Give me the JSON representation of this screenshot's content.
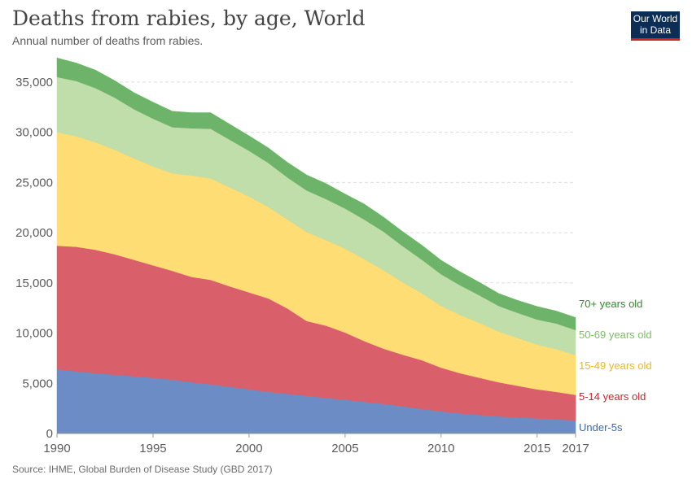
{
  "header": {
    "title": "Deaths from rabies, by age, World",
    "subtitle": "Annual number of deaths from rabies.",
    "logo_line1": "Our World",
    "logo_line2": "in Data"
  },
  "footer": {
    "source": "Source: IHME, Global Burden of Disease Study (GBD 2017)"
  },
  "colors": {
    "Under-5s": "#6b8cc4",
    "5-14 years old": "#d9606a",
    "15-49 years old": "#fedd74",
    "50-69 years old": "#bfdeaa",
    "70+ years old": "#6db46a",
    "label_Under-5s": "#3b68b0",
    "label_5-14 years old": "#c9272f",
    "label_15-49 years old": "#e8b923",
    "label_50-69 years old": "#7dbe66",
    "label_70+ years old": "#2f8c2e",
    "grid": "#dddddd",
    "logo_bg": "#0c2d55",
    "logo_bar": "#ce261e"
  },
  "chart_data": {
    "type": "area",
    "stacked": true,
    "title": "Deaths from rabies, by age, World",
    "xlabel": "",
    "ylabel": "",
    "xlim": [
      1990,
      2017
    ],
    "ylim": [
      0,
      37500
    ],
    "grid": "horizontal",
    "legend": "right (inline labels at series end)",
    "x_ticks": [
      1990,
      1995,
      2000,
      2005,
      2010,
      2015,
      2017
    ],
    "y_ticks": [
      0,
      5000,
      10000,
      15000,
      20000,
      25000,
      30000,
      35000
    ],
    "y_tick_labels": [
      "0",
      "5,000",
      "10,000",
      "15,000",
      "20,000",
      "25,000",
      "30,000",
      "35,000"
    ],
    "x": [
      1990,
      1991,
      1992,
      1993,
      1994,
      1995,
      1996,
      1997,
      1998,
      1999,
      2000,
      2001,
      2002,
      2003,
      2004,
      2005,
      2006,
      2007,
      2008,
      2009,
      2010,
      2011,
      2012,
      2013,
      2014,
      2015,
      2016,
      2017
    ],
    "series": [
      {
        "name": "Under-5s",
        "values": [
          6400,
          6200,
          6000,
          5850,
          5700,
          5550,
          5350,
          5100,
          4900,
          4650,
          4400,
          4150,
          3950,
          3750,
          3550,
          3350,
          3150,
          2950,
          2700,
          2450,
          2200,
          2000,
          1850,
          1700,
          1600,
          1500,
          1400,
          1300
        ]
      },
      {
        "name": "5-14 years old",
        "values": [
          12300,
          12400,
          12300,
          12000,
          11600,
          11200,
          10850,
          10500,
          10400,
          10000,
          9650,
          9300,
          8500,
          7450,
          7200,
          6700,
          6050,
          5500,
          5150,
          4850,
          4350,
          4000,
          3700,
          3400,
          3150,
          2900,
          2750,
          2550
        ]
      },
      {
        "name": "15-49 years old",
        "values": [
          11300,
          11000,
          10700,
          10400,
          10100,
          9850,
          9700,
          10100,
          10100,
          9850,
          9550,
          9100,
          8850,
          8850,
          8500,
          8350,
          8150,
          7800,
          7200,
          6650,
          6150,
          5800,
          5450,
          5050,
          4750,
          4450,
          4250,
          3950
        ]
      },
      {
        "name": "50-69 years old",
        "values": [
          5500,
          5500,
          5400,
          5200,
          4900,
          4750,
          4600,
          4700,
          4950,
          4750,
          4550,
          4400,
          4200,
          4150,
          4100,
          4000,
          3950,
          3850,
          3600,
          3350,
          3150,
          2950,
          2750,
          2550,
          2500,
          2500,
          2550,
          2500
        ]
      },
      {
        "name": "70+ years old",
        "values": [
          1900,
          1800,
          1800,
          1700,
          1650,
          1650,
          1600,
          1550,
          1600,
          1550,
          1500,
          1500,
          1500,
          1550,
          1550,
          1450,
          1550,
          1450,
          1450,
          1450,
          1400,
          1350,
          1300,
          1250,
          1250,
          1300,
          1250,
          1250
        ]
      }
    ]
  }
}
